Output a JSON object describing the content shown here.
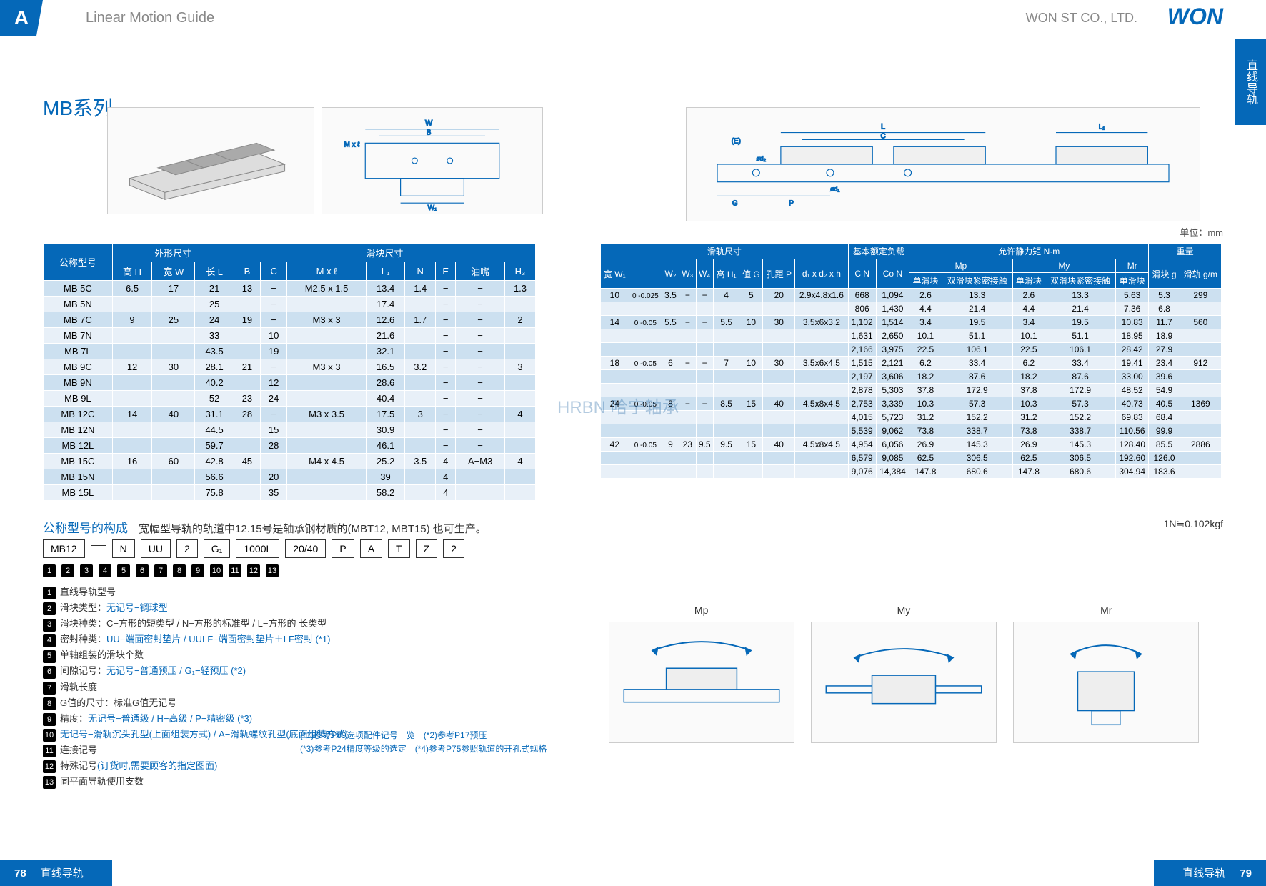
{
  "header": {
    "tab": "A",
    "title": "Linear Motion Guide",
    "company": "WON ST CO., LTD.",
    "logo": "WON",
    "sidebar": "直线导轨"
  },
  "series_title": "MB系列",
  "unit_label": "单位：mm",
  "conversion": "1N≒0.102kgf",
  "table1": {
    "group1": "外形尺寸",
    "group2": "滑块尺寸",
    "h0": "公称型号",
    "h1": "高 H",
    "h2": "宽 W",
    "h3": "长 L",
    "h4": "B",
    "h5": "C",
    "h6": "M x ℓ",
    "h7": "L₁",
    "h8": "N",
    "h9": "E",
    "h10": "油嘴",
    "h11": "H₃",
    "rows": [
      [
        "MB 5C",
        "6.5",
        "17",
        "21",
        "13",
        "−",
        "M2.5 x 1.5",
        "13.4",
        "1.4",
        "−",
        "−",
        "1.3"
      ],
      [
        "MB 5N",
        "",
        "",
        "25",
        "",
        "−",
        "",
        "17.4",
        "",
        "−",
        "−",
        ""
      ],
      [
        "MB 7C",
        "9",
        "25",
        "24",
        "19",
        "−",
        "M3 x 3",
        "12.6",
        "1.7",
        "−",
        "−",
        "2"
      ],
      [
        "MB 7N",
        "",
        "",
        "33",
        "",
        "10",
        "",
        "21.6",
        "",
        "−",
        "−",
        ""
      ],
      [
        "MB 7L",
        "",
        "",
        "43.5",
        "",
        "19",
        "",
        "32.1",
        "",
        "−",
        "−",
        ""
      ],
      [
        "MB 9C",
        "12",
        "30",
        "28.1",
        "21",
        "−",
        "M3 x 3",
        "16.5",
        "3.2",
        "−",
        "−",
        "3"
      ],
      [
        "MB 9N",
        "",
        "",
        "40.2",
        "",
        "12",
        "",
        "28.6",
        "",
        "−",
        "−",
        ""
      ],
      [
        "MB 9L",
        "",
        "",
        "52",
        "23",
        "24",
        "",
        "40.4",
        "",
        "−",
        "−",
        ""
      ],
      [
        "MB 12C",
        "14",
        "40",
        "31.1",
        "28",
        "−",
        "M3 x 3.5",
        "17.5",
        "3",
        "−",
        "−",
        "4"
      ],
      [
        "MB 12N",
        "",
        "",
        "44.5",
        "",
        "15",
        "",
        "30.9",
        "",
        "−",
        "−",
        ""
      ],
      [
        "MB 12L",
        "",
        "",
        "59.7",
        "",
        "28",
        "",
        "46.1",
        "",
        "−",
        "−",
        ""
      ],
      [
        "MB 15C",
        "16",
        "60",
        "42.8",
        "45",
        "",
        "M4 x 4.5",
        "25.2",
        "3.5",
        "4",
        "A−M3",
        "4"
      ],
      [
        "MB 15N",
        "",
        "",
        "56.6",
        "",
        "20",
        "",
        "39",
        "",
        "4",
        "",
        ""
      ],
      [
        "MB 15L",
        "",
        "",
        "75.8",
        "",
        "35",
        "",
        "58.2",
        "",
        "4",
        "",
        ""
      ]
    ]
  },
  "table2": {
    "group1": "滑轨尺寸",
    "group2": "基本额定负载",
    "group3": "允许静力矩 N·m",
    "group4": "重量",
    "h0": "宽 W₁",
    "h1": "W₂",
    "h2": "W₃",
    "h3": "W₄",
    "h4": "高 H₁",
    "h5": "值 G",
    "h6": "孔距 P",
    "h7": "d₁ x d₂ x h",
    "h8": "C N",
    "h9": "Co N",
    "h10": "Mp",
    "h11": "My",
    "h12": "Mr",
    "h13": "滑块 g",
    "h14": "滑轨 g/m",
    "hs1": "单滑块",
    "hs2": "双滑块紧密接触",
    "rows": [
      [
        "10",
        "0 -0.025",
        "3.5",
        "−",
        "−",
        "4",
        "5",
        "20",
        "2.9x4.8x1.6",
        "668",
        "1,094",
        "2.6",
        "13.3",
        "2.6",
        "13.3",
        "5.63",
        "5.3",
        "299"
      ],
      [
        "",
        "",
        "",
        "",
        "",
        "",
        "",
        "",
        "",
        "806",
        "1,430",
        "4.4",
        "21.4",
        "4.4",
        "21.4",
        "7.36",
        "6.8",
        ""
      ],
      [
        "14",
        "0 -0.05",
        "5.5",
        "−",
        "−",
        "5.5",
        "10",
        "30",
        "3.5x6x3.2",
        "1,102",
        "1,514",
        "3.4",
        "19.5",
        "3.4",
        "19.5",
        "10.83",
        "11.7",
        "560"
      ],
      [
        "",
        "",
        "",
        "",
        "",
        "",
        "",
        "",
        "",
        "1,631",
        "2,650",
        "10.1",
        "51.1",
        "10.1",
        "51.1",
        "18.95",
        "18.9",
        ""
      ],
      [
        "",
        "",
        "",
        "",
        "",
        "",
        "",
        "",
        "",
        "2,166",
        "3,975",
        "22.5",
        "106.1",
        "22.5",
        "106.1",
        "28.42",
        "27.9",
        ""
      ],
      [
        "18",
        "0 -0.05",
        "6",
        "−",
        "−",
        "7",
        "10",
        "30",
        "3.5x6x4.5",
        "1,515",
        "2,121",
        "6.2",
        "33.4",
        "6.2",
        "33.4",
        "19.41",
        "23.4",
        "912"
      ],
      [
        "",
        "",
        "",
        "",
        "",
        "",
        "",
        "",
        "",
        "2,197",
        "3,606",
        "18.2",
        "87.6",
        "18.2",
        "87.6",
        "33.00",
        "39.6",
        ""
      ],
      [
        "",
        "",
        "",
        "",
        "",
        "",
        "",
        "",
        "",
        "2,878",
        "5,303",
        "37.8",
        "172.9",
        "37.8",
        "172.9",
        "48.52",
        "54.9",
        ""
      ],
      [
        "24",
        "0 -0.05",
        "8",
        "−",
        "−",
        "8.5",
        "15",
        "40",
        "4.5x8x4.5",
        "2,753",
        "3,339",
        "10.3",
        "57.3",
        "10.3",
        "57.3",
        "40.73",
        "40.5",
        "1369"
      ],
      [
        "",
        "",
        "",
        "",
        "",
        "",
        "",
        "",
        "",
        "4,015",
        "5,723",
        "31.2",
        "152.2",
        "31.2",
        "152.2",
        "69.83",
        "68.4",
        ""
      ],
      [
        "",
        "",
        "",
        "",
        "",
        "",
        "",
        "",
        "",
        "5,539",
        "9,062",
        "73.8",
        "338.7",
        "73.8",
        "338.7",
        "110.56",
        "99.9",
        ""
      ],
      [
        "42",
        "0 -0.05",
        "9",
        "23",
        "9.5",
        "9.5",
        "15",
        "40",
        "4.5x8x4.5",
        "4,954",
        "6,056",
        "26.9",
        "145.3",
        "26.9",
        "145.3",
        "128.40",
        "85.5",
        "2886"
      ],
      [
        "",
        "",
        "",
        "",
        "",
        "",
        "",
        "",
        "",
        "6,579",
        "9,085",
        "62.5",
        "306.5",
        "62.5",
        "306.5",
        "192.60",
        "126.0",
        ""
      ],
      [
        "",
        "",
        "",
        "",
        "",
        "",
        "",
        "",
        "",
        "9,076",
        "14,384",
        "147.8",
        "680.6",
        "147.8",
        "680.6",
        "304.94",
        "183.6",
        ""
      ]
    ]
  },
  "formula": {
    "title": "公称型号的构成",
    "note": "宽幅型导轨的轨道中12.15号是轴承钢材质的(MBT12, MBT15) 也可生产。",
    "codes": [
      "MB12",
      "",
      "N",
      "UU",
      "2",
      "G₁",
      "1000L",
      "20/40",
      "P",
      "A",
      "T",
      "Z",
      "2"
    ],
    "nums": [
      "1",
      "2",
      "3",
      "4",
      "5",
      "6",
      "7",
      "8",
      "9",
      "10",
      "11",
      "12",
      "13"
    ]
  },
  "legend": [
    {
      "n": "1",
      "t": "直线导轨型号"
    },
    {
      "n": "2",
      "t": "滑块类型：",
      "b": "无记号−钢球型"
    },
    {
      "n": "3",
      "t": "滑块种类：C−方形的短类型 / N−方形的标准型 / L−方形的 长类型"
    },
    {
      "n": "4",
      "t": "密封种类：",
      "b": "UU−端面密封垫片 / UULF−端面密封垫片＋LF密封 (*1)"
    },
    {
      "n": "5",
      "t": "单轴组装的滑块个数"
    },
    {
      "n": "6",
      "t": "间隙记号：",
      "b": "无记号−普通预压 / G₁−轻预压 (*2)"
    },
    {
      "n": "7",
      "t": "滑轨长度"
    },
    {
      "n": "8",
      "t": "G值的尺寸：标准G值无记号"
    },
    {
      "n": "9",
      "t": "精度：",
      "b": "无记号−普通级 / H−高级 / P−精密级 (*3)"
    },
    {
      "n": "10",
      "b": "无记号−滑轨沉头孔型(上面组装方式) / A−滑轨螺纹孔型(底面组装方式)"
    },
    {
      "n": "11",
      "t": "连接记号"
    },
    {
      "n": "12",
      "t": "特殊记号",
      "b": "(订货时,需要顾客的指定图面)"
    },
    {
      "n": "13",
      "t": "同平面导轨使用支数"
    }
  ],
  "footnotes": {
    "l1": "(*1)参考P89选项配件记号一览　(*2)参考P17预压",
    "l2": "(*3)参考P24精度等级的选定　(*4)参考P75参照轨道的开孔式规格"
  },
  "moments": {
    "m1": "Mp",
    "m2": "My",
    "m3": "Mr"
  },
  "footer": {
    "left_page": "78",
    "left_text": "直线导轨",
    "right_text": "直线导轨",
    "right_page": "79"
  },
  "watermark": "HRBN 哈宁轴承",
  "colors": {
    "primary": "#0568b8",
    "row_odd": "#cce0f0",
    "row_even": "#e8f0f8"
  }
}
